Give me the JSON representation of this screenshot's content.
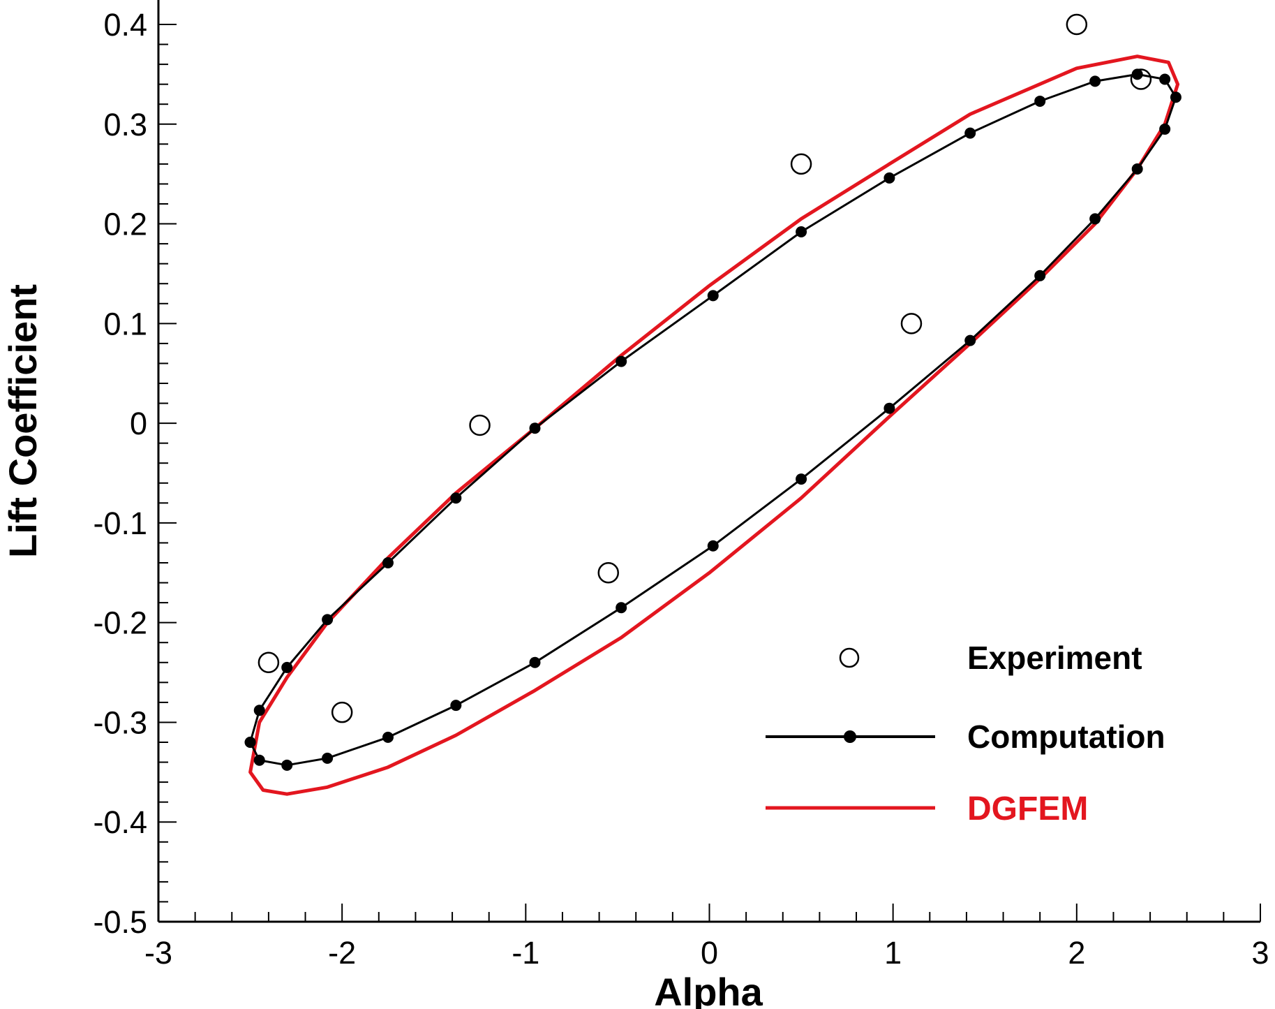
{
  "chart_data": {
    "type": "line",
    "xlabel": "Alpha",
    "ylabel": "Lift Coefficient",
    "xlim": [
      -3,
      3
    ],
    "ylim": [
      -0.5,
      0.4
    ],
    "x_ticks": [
      "-3",
      "-2",
      "-1",
      "0",
      "1",
      "2",
      "3"
    ],
    "y_ticks": [
      "0.4",
      "0.3",
      "0.2",
      "0.1",
      "0",
      "-0.1",
      "-0.2",
      "-0.3",
      "-0.4",
      "-0.5"
    ],
    "grid": false,
    "legend_position": "bottom-right",
    "colors": {
      "experiment": "#000000",
      "computation": "#000000",
      "dgfem": "#e3161f"
    },
    "series": [
      {
        "name": "Experiment",
        "marker": "open-circle",
        "x": [
          2.0,
          2.35,
          0.5,
          1.1,
          -1.25,
          -0.55,
          -2.4,
          -2.0
        ],
        "y": [
          0.4,
          0.345,
          0.26,
          0.1,
          -0.002,
          -0.15,
          -0.24,
          -0.29
        ]
      },
      {
        "name": "Computation",
        "marker": "filled-circle",
        "x": [
          -2.5,
          -2.45,
          -2.3,
          -2.08,
          -1.75,
          -1.38,
          -0.95,
          -0.48,
          0.02,
          0.5,
          0.98,
          1.42,
          1.8,
          2.1,
          2.33,
          2.48,
          2.54,
          2.48,
          2.33,
          2.1,
          1.8,
          1.42,
          0.98,
          0.5,
          0.02,
          -0.48,
          -0.95,
          -1.38,
          -1.75,
          -2.08,
          -2.3,
          -2.45,
          -2.5
        ],
        "y": [
          -0.32,
          -0.338,
          -0.343,
          -0.336,
          -0.315,
          -0.283,
          -0.24,
          -0.185,
          -0.123,
          -0.056,
          0.015,
          0.083,
          0.148,
          0.205,
          0.255,
          0.295,
          0.327,
          0.345,
          0.35,
          0.343,
          0.323,
          0.291,
          0.246,
          0.192,
          0.128,
          0.062,
          -0.005,
          -0.075,
          -0.14,
          -0.197,
          -0.245,
          -0.288,
          -0.32
        ]
      },
      {
        "name": "DGFEM",
        "marker": "none",
        "x": [
          -2.5,
          -2.43,
          -2.3,
          -2.08,
          -1.75,
          -1.38,
          -0.95,
          -0.48,
          0.0,
          0.5,
          1.0,
          1.42,
          1.8,
          2.1,
          2.33,
          2.48,
          2.55,
          2.5,
          2.33,
          2.0,
          1.42,
          0.98,
          0.5,
          0.0,
          -0.48,
          -0.95,
          -1.38,
          -1.75,
          -2.08,
          -2.3,
          -2.45,
          -2.5
        ],
        "y": [
          -0.35,
          -0.368,
          -0.372,
          -0.365,
          -0.345,
          -0.313,
          -0.268,
          -0.215,
          -0.15,
          -0.075,
          0.01,
          0.08,
          0.145,
          0.2,
          0.255,
          0.3,
          0.34,
          0.362,
          0.368,
          0.356,
          0.31,
          0.26,
          0.205,
          0.138,
          0.068,
          -0.005,
          -0.07,
          -0.135,
          -0.2,
          -0.255,
          -0.3,
          -0.35
        ]
      }
    ]
  }
}
